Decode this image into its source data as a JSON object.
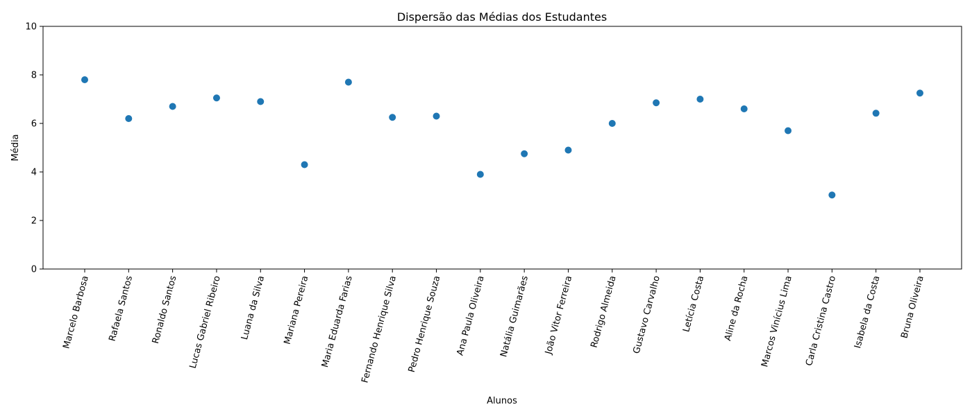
{
  "chart_data": {
    "type": "scatter",
    "title": "Dispersão das Médias dos Estudantes",
    "xlabel": "Alunos",
    "ylabel": "Média",
    "ylim": [
      0,
      10
    ],
    "yticks": [
      0,
      2,
      4,
      6,
      8,
      10
    ],
    "grid": false,
    "color": "#1f77b4",
    "categories": [
      "Marcelo Barbosa",
      "Rafaela Santos",
      "Ronaldo Santos",
      "Lucas Gabriel Ribeiro",
      "Luana da Silva",
      "Mariana Pereira",
      "Maria Eduarda Farias",
      "Fernando Henrique Silva",
      "Pedro Henrique Souza",
      "Ana Paula Oliveira",
      "Natália Guimarães",
      "João Vitor Ferreira",
      "Rodrigo Almeida",
      "Gustavo Carvalho",
      "Letícia Costa",
      "Aline da Rocha",
      "Marcos Vinícius Lima",
      "Carla Cristina Castro",
      "Isabela da Costa",
      "Bruna Oliveira"
    ],
    "values": [
      7.8,
      6.2,
      6.7,
      7.05,
      6.9,
      4.3,
      7.7,
      6.25,
      6.3,
      3.9,
      4.75,
      4.9,
      6.0,
      6.85,
      7.0,
      6.6,
      5.7,
      3.05,
      6.42,
      7.25
    ]
  }
}
